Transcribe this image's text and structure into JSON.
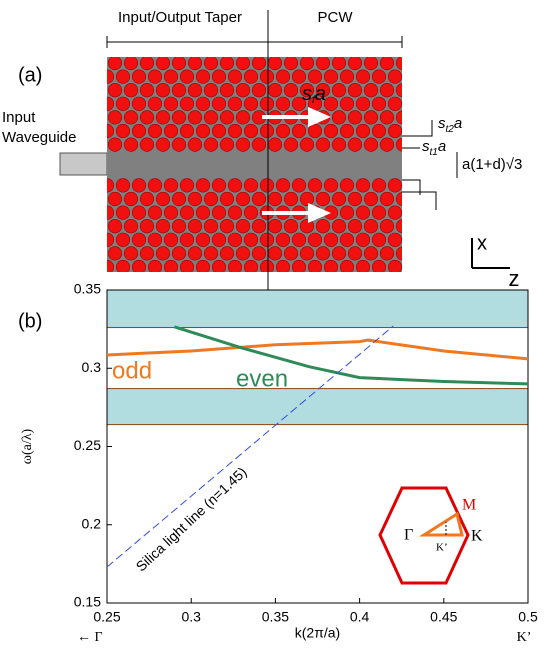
{
  "panel_a": {
    "label": "(a)",
    "taper": "Input/Output Taper",
    "pcw": "PCW",
    "input_line1": "Input",
    "input_line2": "Waveguide",
    "sf": {
      "base": "s",
      "sub": "f",
      "tail": "a"
    },
    "st2": {
      "base": "s",
      "sub": "t2",
      "tail": "a"
    },
    "st1": {
      "base": "s",
      "sub": "t1",
      "tail": "a"
    },
    "width": "a(1+d)√3",
    "axis_x": "x",
    "axis_z": "z"
  },
  "chart_data": {
    "type": "line",
    "panel_label": "(b)",
    "xlabel": "k(2π/a)",
    "ylabel": "ω(a/λ)",
    "xlim": [
      0.25,
      0.5
    ],
    "ylim": [
      0.15,
      0.35
    ],
    "xticks": [
      0.25,
      0.3,
      0.35,
      0.4,
      0.45,
      0.5
    ],
    "yticks": [
      0.15,
      0.2,
      0.25,
      0.3,
      0.35
    ],
    "x_end_left": "← Γ",
    "x_end_right": "K’",
    "bands": [
      [
        0.264,
        0.287
      ],
      [
        0.326,
        0.35
      ]
    ],
    "band_color": "#b2dde0",
    "series": [
      {
        "name": "odd",
        "color": "#f07820",
        "x": [
          0.25,
          0.3,
          0.35,
          0.4,
          0.405,
          0.45,
          0.5
        ],
        "values": [
          0.3085,
          0.311,
          0.315,
          0.317,
          0.318,
          0.311,
          0.306
        ]
      },
      {
        "name": "even",
        "color": "#2e8b57",
        "x": [
          0.29,
          0.33,
          0.37,
          0.4,
          0.45,
          0.5
        ],
        "values": [
          0.3265,
          0.313,
          0.301,
          0.294,
          0.2915,
          0.29
        ]
      },
      {
        "name": "Silica light line (n=1.45)",
        "color": "#3050e0",
        "x": [
          0.25,
          0.42
        ],
        "values": [
          0.173,
          0.327
        ]
      }
    ],
    "inset": {
      "gamma": "Γ",
      "m": "M",
      "k": "K",
      "kp": "K’"
    }
  }
}
